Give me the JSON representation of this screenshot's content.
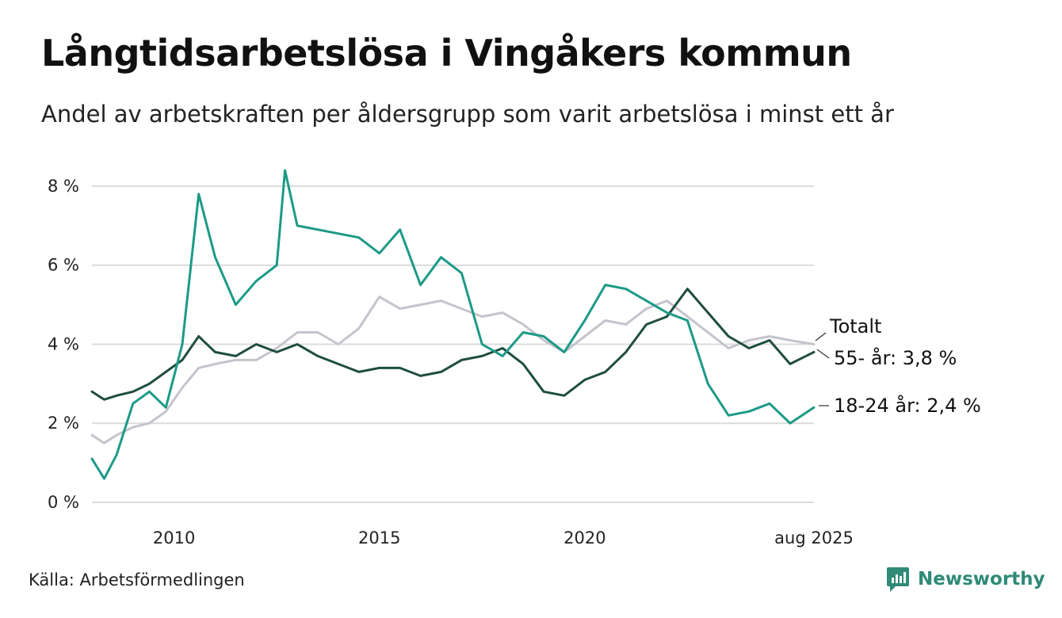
{
  "title": "Långtidsarbetslösa i Vingåkers kommun",
  "subtitle": "Andel av arbetskraften per åldersgrupp som varit arbetslösa i minst ett år",
  "source": "Källa: Arbetsförmedlingen",
  "brand": "Newsworthy",
  "colors": {
    "total": "#c5c3cc",
    "age55": "#1f4d40",
    "age1824": "#1c9a86",
    "grid": "#dcdcdc",
    "brand": "#2f8a77"
  },
  "chart_data": {
    "type": "line",
    "title": "Långtidsarbetslösa i Vingåkers kommun",
    "subtitle": "Andel av arbetskraften per åldersgrupp som varit arbetslösa i minst ett år",
    "x_range": [
      2008.0,
      2025.58
    ],
    "ylim": [
      0,
      8.5
    ],
    "y_ticks": [
      0,
      2,
      4,
      6,
      8
    ],
    "y_tick_labels": [
      "0 %",
      "2 %",
      "4 %",
      "6 %",
      "8 %"
    ],
    "x_ticks": [
      2010,
      2015,
      2020,
      2025.58
    ],
    "x_tick_labels": [
      "2010",
      "2015",
      "2020",
      "aug 2025"
    ],
    "grid": true,
    "series": [
      {
        "name": "Totalt",
        "end_label": "Totalt",
        "color_key": "total",
        "points": [
          [
            2008.0,
            1.7
          ],
          [
            2008.3,
            1.5
          ],
          [
            2008.6,
            1.7
          ],
          [
            2009.0,
            1.9
          ],
          [
            2009.4,
            2.0
          ],
          [
            2009.8,
            2.3
          ],
          [
            2010.2,
            2.9
          ],
          [
            2010.6,
            3.4
          ],
          [
            2011.0,
            3.5
          ],
          [
            2011.5,
            3.6
          ],
          [
            2012.0,
            3.6
          ],
          [
            2012.5,
            3.9
          ],
          [
            2013.0,
            4.3
          ],
          [
            2013.5,
            4.3
          ],
          [
            2014.0,
            4.0
          ],
          [
            2014.5,
            4.4
          ],
          [
            2015.0,
            5.2
          ],
          [
            2015.5,
            4.9
          ],
          [
            2016.0,
            5.0
          ],
          [
            2016.5,
            5.1
          ],
          [
            2017.0,
            4.9
          ],
          [
            2017.5,
            4.7
          ],
          [
            2018.0,
            4.8
          ],
          [
            2018.5,
            4.5
          ],
          [
            2019.0,
            4.1
          ],
          [
            2019.5,
            3.8
          ],
          [
            2020.0,
            4.2
          ],
          [
            2020.5,
            4.6
          ],
          [
            2021.0,
            4.5
          ],
          [
            2021.5,
            4.9
          ],
          [
            2022.0,
            5.1
          ],
          [
            2022.5,
            4.7
          ],
          [
            2023.0,
            4.3
          ],
          [
            2023.5,
            3.9
          ],
          [
            2024.0,
            4.1
          ],
          [
            2024.5,
            4.2
          ],
          [
            2025.0,
            4.1
          ],
          [
            2025.58,
            4.0
          ]
        ]
      },
      {
        "name": "55- år",
        "end_label": "55- år: 3,8 %",
        "color_key": "age55",
        "points": [
          [
            2008.0,
            2.8
          ],
          [
            2008.3,
            2.6
          ],
          [
            2008.6,
            2.7
          ],
          [
            2009.0,
            2.8
          ],
          [
            2009.4,
            3.0
          ],
          [
            2009.8,
            3.3
          ],
          [
            2010.2,
            3.6
          ],
          [
            2010.6,
            4.2
          ],
          [
            2011.0,
            3.8
          ],
          [
            2011.5,
            3.7
          ],
          [
            2012.0,
            4.0
          ],
          [
            2012.5,
            3.8
          ],
          [
            2013.0,
            4.0
          ],
          [
            2013.5,
            3.7
          ],
          [
            2014.0,
            3.5
          ],
          [
            2014.5,
            3.3
          ],
          [
            2015.0,
            3.4
          ],
          [
            2015.5,
            3.4
          ],
          [
            2016.0,
            3.2
          ],
          [
            2016.5,
            3.3
          ],
          [
            2017.0,
            3.6
          ],
          [
            2017.5,
            3.7
          ],
          [
            2018.0,
            3.9
          ],
          [
            2018.5,
            3.5
          ],
          [
            2019.0,
            2.8
          ],
          [
            2019.5,
            2.7
          ],
          [
            2020.0,
            3.1
          ],
          [
            2020.5,
            3.3
          ],
          [
            2021.0,
            3.8
          ],
          [
            2021.5,
            4.5
          ],
          [
            2022.0,
            4.7
          ],
          [
            2022.5,
            5.4
          ],
          [
            2023.0,
            4.8
          ],
          [
            2023.5,
            4.2
          ],
          [
            2024.0,
            3.9
          ],
          [
            2024.5,
            4.1
          ],
          [
            2025.0,
            3.5
          ],
          [
            2025.58,
            3.8
          ]
        ]
      },
      {
        "name": "18-24 år",
        "end_label": "18-24 år: 2,4 %",
        "color_key": "age1824",
        "points": [
          [
            2008.0,
            1.1
          ],
          [
            2008.3,
            0.6
          ],
          [
            2008.6,
            1.2
          ],
          [
            2009.0,
            2.5
          ],
          [
            2009.4,
            2.8
          ],
          [
            2009.8,
            2.4
          ],
          [
            2010.2,
            4.0
          ],
          [
            2010.6,
            7.8
          ],
          [
            2011.0,
            6.2
          ],
          [
            2011.5,
            5.0
          ],
          [
            2012.0,
            5.6
          ],
          [
            2012.5,
            6.0
          ],
          [
            2012.7,
            8.4
          ],
          [
            2013.0,
            7.0
          ],
          [
            2013.5,
            6.9
          ],
          [
            2014.0,
            6.8
          ],
          [
            2014.5,
            6.7
          ],
          [
            2015.0,
            6.3
          ],
          [
            2015.5,
            6.9
          ],
          [
            2016.0,
            5.5
          ],
          [
            2016.5,
            6.2
          ],
          [
            2017.0,
            5.8
          ],
          [
            2017.5,
            4.0
          ],
          [
            2018.0,
            3.7
          ],
          [
            2018.5,
            4.3
          ],
          [
            2019.0,
            4.2
          ],
          [
            2019.5,
            3.8
          ],
          [
            2020.0,
            4.6
          ],
          [
            2020.5,
            5.5
          ],
          [
            2021.0,
            5.4
          ],
          [
            2021.5,
            5.1
          ],
          [
            2022.0,
            4.8
          ],
          [
            2022.5,
            4.6
          ],
          [
            2023.0,
            3.0
          ],
          [
            2023.5,
            2.2
          ],
          [
            2024.0,
            2.3
          ],
          [
            2024.5,
            2.5
          ],
          [
            2025.0,
            2.0
          ],
          [
            2025.58,
            2.4
          ]
        ]
      }
    ]
  }
}
